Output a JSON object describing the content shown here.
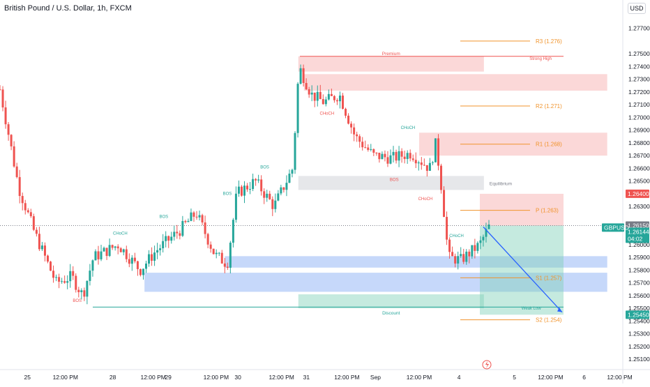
{
  "header": {
    "title": "British Pound / U.S. Dollar, 1h, FXCM",
    "currency": "USD"
  },
  "colors": {
    "up": "#26a69a",
    "down": "#ef5350",
    "demand": "#5b8ef0",
    "supply": "#f7a8a8",
    "neutral": "#b2b5be",
    "level": "#f0932b",
    "target": "#26a69a",
    "path": "#2962ff"
  },
  "chart_data": {
    "type": "candlestick",
    "symbol": "GBPUSD",
    "ylim": [
      1.2503,
      1.2778
    ],
    "y_ticks": [
      "1.27700",
      "1.27500",
      "1.27400",
      "1.27300",
      "1.27200",
      "1.27100",
      "1.27000",
      "1.26900",
      "1.26800",
      "1.26700",
      "1.26600",
      "1.26500",
      "1.26300",
      "1.26000",
      "1.25900",
      "1.25800",
      "1.25700",
      "1.25600",
      "1.25500",
      "1.25400",
      "1.25300",
      "1.25200",
      "1.25100"
    ],
    "x_ticks": [
      "25",
      "12:00 PM",
      "28",
      "12:00 PM",
      "29",
      "12:00 PM",
      "30",
      "12:00 PM",
      "31",
      "12:00 PM",
      "Sep",
      "12:00 PM",
      "4",
      "5",
      "12:00 PM",
      "6",
      "12:00 PM"
    ],
    "price_tags": [
      {
        "label": "1.26400",
        "value": 1.264,
        "color": "#ef5350"
      },
      {
        "label": "1.26150",
        "value": 1.2615,
        "color": "#787b86"
      },
      {
        "label": "1.26144",
        "value": 1.2614,
        "color": "#26a69a",
        "extra": "04:02"
      },
      {
        "label": "1.25450",
        "value": 1.2545,
        "color": "#26a69a"
      }
    ],
    "symbol_tag": "GBPUSD",
    "levels": [
      {
        "label": "R3 (1.276)",
        "value": 1.276
      },
      {
        "label": "R2 (1.271)",
        "value": 1.2709
      },
      {
        "label": "R1 (1.268)",
        "value": 1.2679
      },
      {
        "label": "P (1.263)",
        "value": 1.2627
      },
      {
        "label": "S1 (1.257)",
        "value": 1.2574
      },
      {
        "label": "S2 (1.254)",
        "value": 1.2541
      }
    ],
    "zones": [
      {
        "kind": "supply",
        "label": "Premium",
        "x0": 0.479,
        "x1": 0.777,
        "y0": 1.2748,
        "y1": 1.2736
      },
      {
        "kind": "supply",
        "label": "",
        "x0": 0.488,
        "x1": 0.975,
        "y0": 1.2734,
        "y1": 1.2721
      },
      {
        "kind": "supply",
        "label": "",
        "x0": 0.673,
        "x1": 0.975,
        "y0": 1.2688,
        "y1": 1.267
      },
      {
        "kind": "neutral",
        "label": "Equilibrium",
        "x0": 0.479,
        "x1": 0.777,
        "y0": 1.2654,
        "y1": 1.2643
      },
      {
        "kind": "demand",
        "label": "",
        "x0": 0.361,
        "x1": 0.975,
        "y0": 1.2591,
        "y1": 1.2582
      },
      {
        "kind": "demand",
        "label": "",
        "x0": 0.232,
        "x1": 0.975,
        "y0": 1.2578,
        "y1": 1.2563
      },
      {
        "kind": "target",
        "label": "Discount",
        "x0": 0.479,
        "x1": 0.777,
        "y0": 1.2561,
        "y1": 1.255
      }
    ],
    "structure_labels": [
      {
        "text": "BOS",
        "x": 0.124,
        "y": 1.2555,
        "color": "#ef5350"
      },
      {
        "text": "CHoCH",
        "x": 0.193,
        "y": 1.2608,
        "color": "#26a69a"
      },
      {
        "text": "BOS",
        "x": 0.263,
        "y": 1.2621,
        "color": "#26a69a"
      },
      {
        "text": "BOS",
        "x": 0.365,
        "y": 1.2639,
        "color": "#26a69a"
      },
      {
        "text": "BOS",
        "x": 0.425,
        "y": 1.266,
        "color": "#26a69a"
      },
      {
        "text": "CHoCH",
        "x": 0.525,
        "y": 1.2702,
        "color": "#ef5350"
      },
      {
        "text": "BOS",
        "x": 0.633,
        "y": 1.265,
        "color": "#ef5350"
      },
      {
        "text": "CHoCH",
        "x": 0.655,
        "y": 1.2691,
        "color": "#26a69a"
      },
      {
        "text": "CHoCH",
        "x": 0.683,
        "y": 1.2635,
        "color": "#ef5350"
      },
      {
        "text": "CHoCH",
        "x": 0.733,
        "y": 1.2606,
        "color": "#26a69a"
      },
      {
        "text": "Strong High",
        "x": 0.868,
        "y": 1.2745,
        "color": "#ef5350"
      },
      {
        "text": "Weak Low",
        "x": 0.853,
        "y": 1.2549,
        "color": "#26a69a"
      }
    ],
    "position": {
      "entry": 1.2615,
      "stop": 1.264,
      "target": 1.2545
    }
  }
}
